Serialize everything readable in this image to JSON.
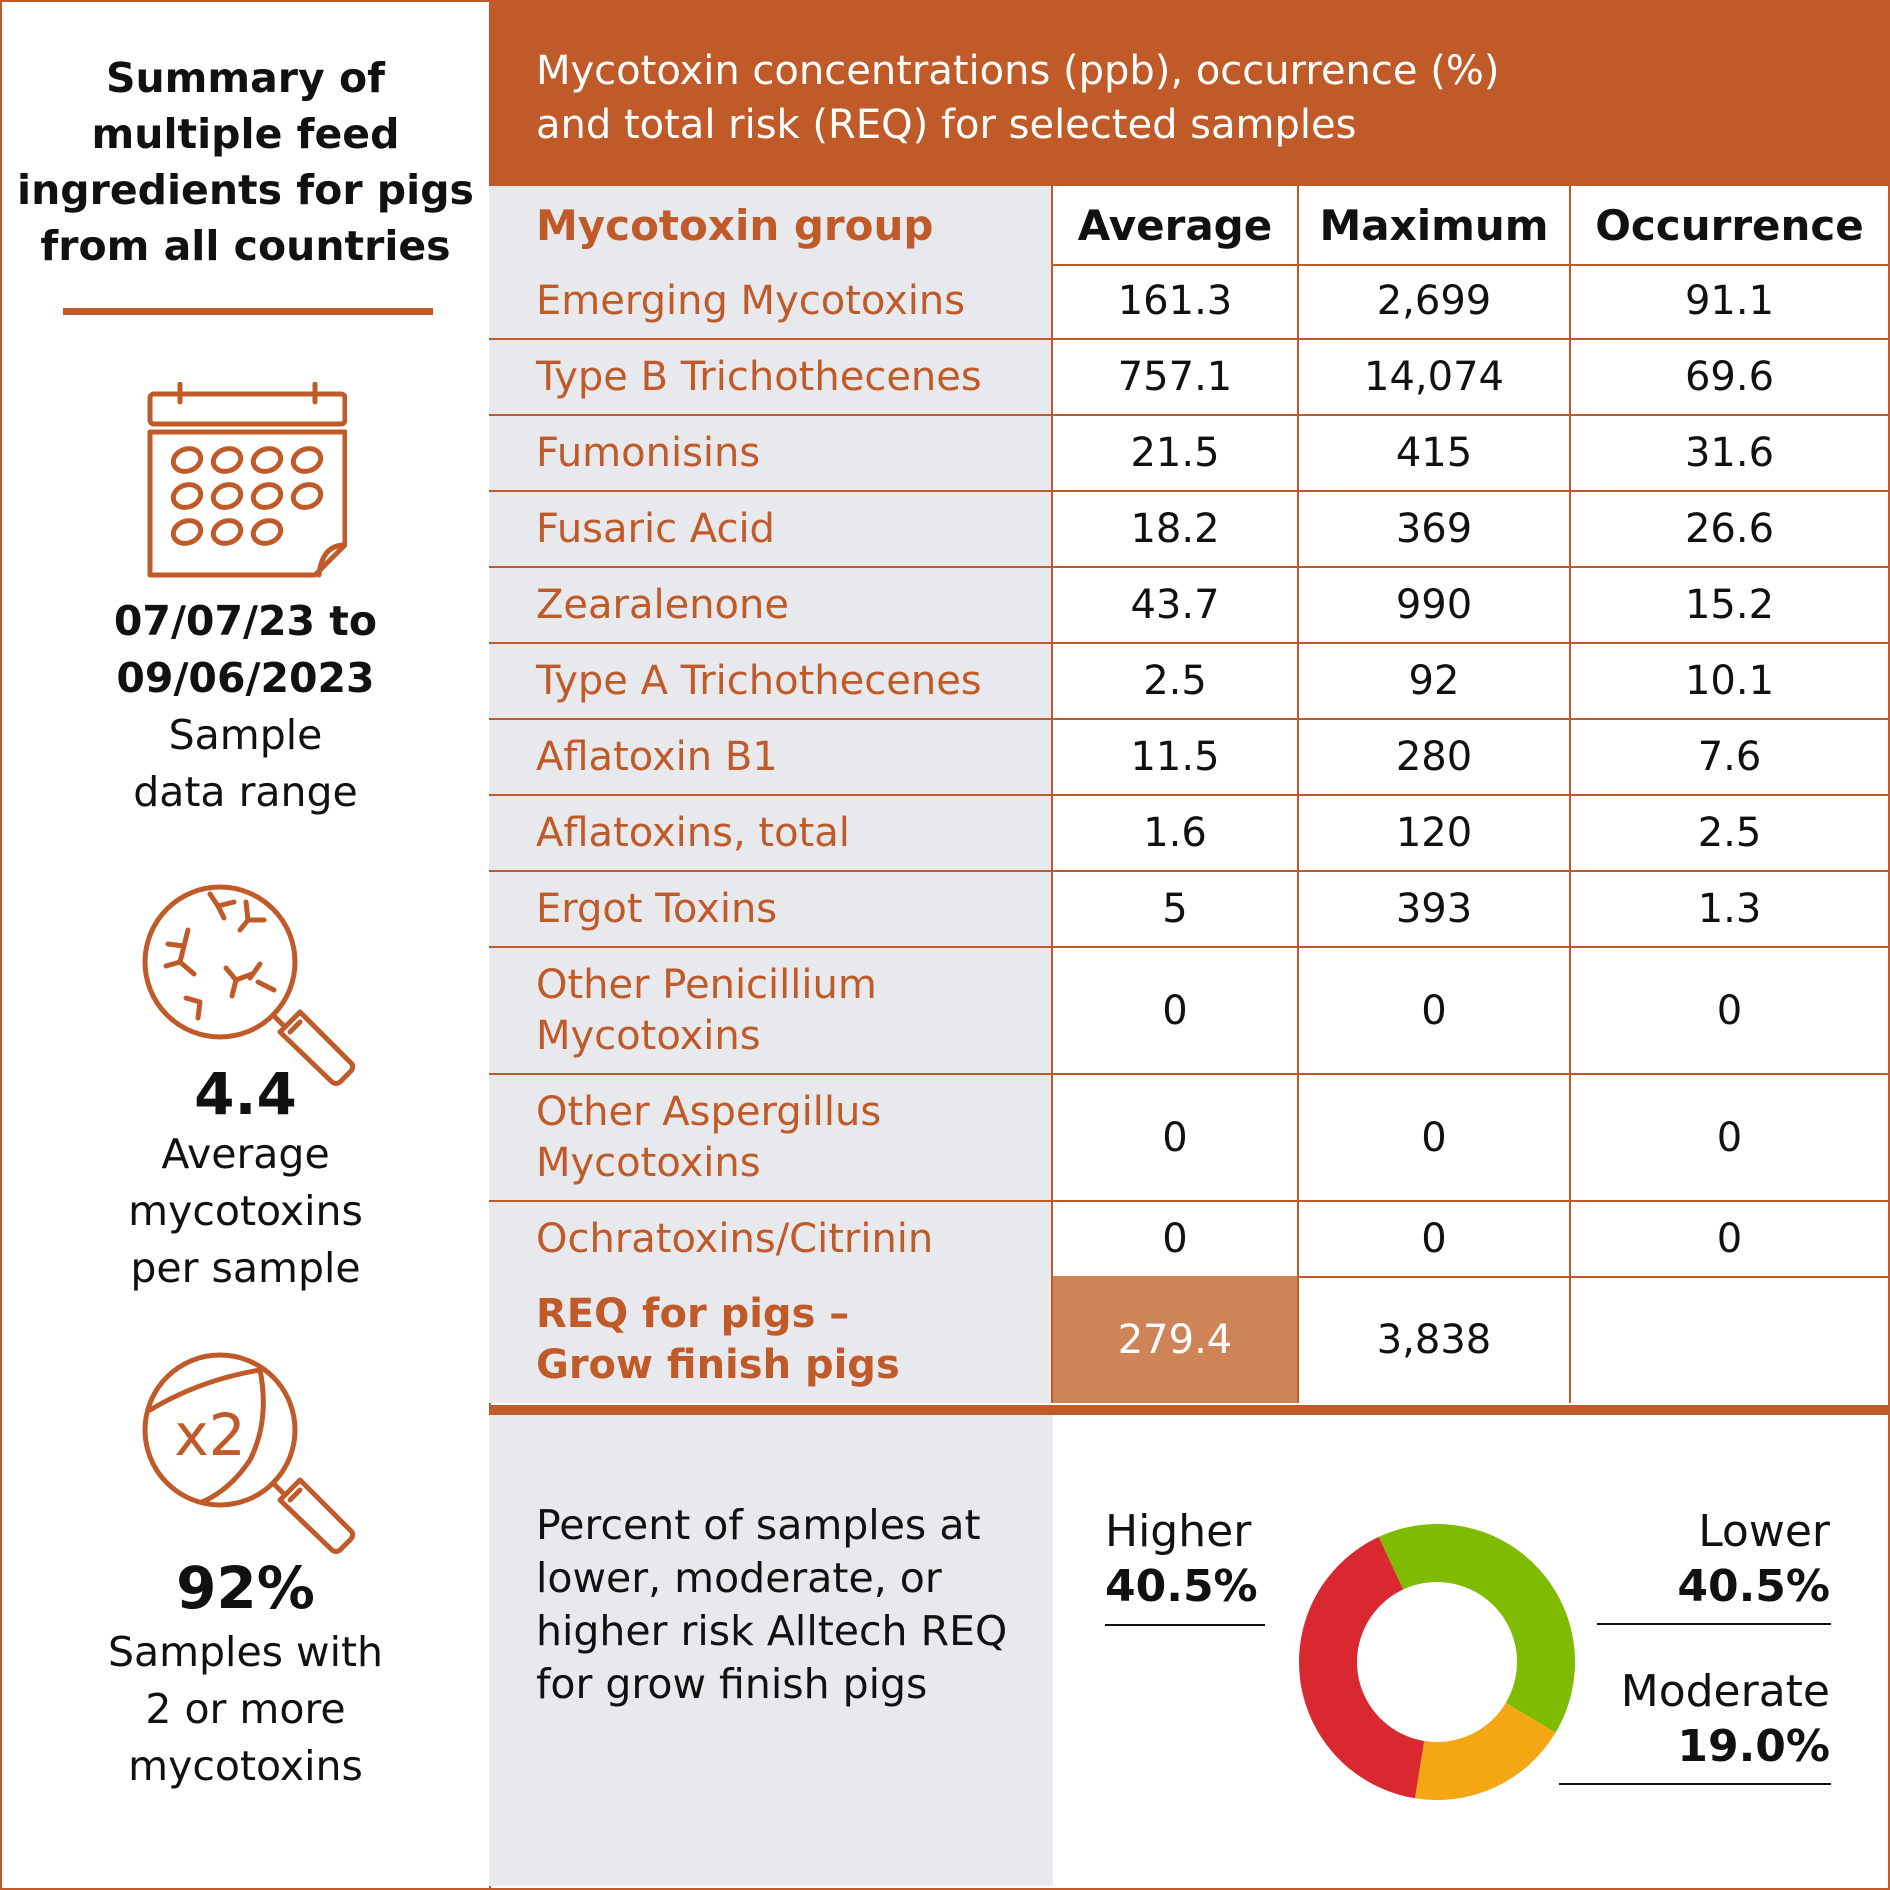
{
  "sidebar": {
    "title": [
      "Summary of",
      "multiple feed",
      "ingredients for pigs",
      "from all countries"
    ],
    "date_range": [
      "07/07/23 to",
      "09/06/2023"
    ],
    "date_label": [
      "Sample",
      "data range"
    ],
    "avg_value": "4.4",
    "avg_label": [
      "Average",
      "mycotoxins",
      "per sample"
    ],
    "pct_value": "92%",
    "pct_label": [
      "Samples with",
      "2 or more",
      "mycotoxins"
    ],
    "x2_text": "x2",
    "icons": [
      "calendar-icon",
      "magnifier-mold-icon",
      "magnifier-x2-icon"
    ],
    "accent_color": "#c05a28"
  },
  "header": {
    "lines": [
      "Mycotoxin concentrations (ppb), occurrence (%)",
      "and total risk (REQ) for selected samples"
    ]
  },
  "table": {
    "columns": [
      "Mycotoxin group",
      "Average",
      "Maximum",
      "Occurrence"
    ],
    "rows": [
      {
        "group": [
          "Emerging Mycotoxins"
        ],
        "average": "161.3",
        "maximum": "2,699",
        "occurrence": "91.1"
      },
      {
        "group": [
          "Type B Trichothecenes"
        ],
        "average": "757.1",
        "maximum": "14,074",
        "occurrence": "69.6"
      },
      {
        "group": [
          "Fumonisins"
        ],
        "average": "21.5",
        "maximum": "415",
        "occurrence": "31.6"
      },
      {
        "group": [
          "Fusaric Acid"
        ],
        "average": "18.2",
        "maximum": "369",
        "occurrence": "26.6"
      },
      {
        "group": [
          "Zearalenone"
        ],
        "average": "43.7",
        "maximum": "990",
        "occurrence": "15.2"
      },
      {
        "group": [
          "Type A Trichothecenes"
        ],
        "average": "2.5",
        "maximum": "92",
        "occurrence": "10.1"
      },
      {
        "group": [
          "Aflatoxin B1"
        ],
        "average": "11.5",
        "maximum": "280",
        "occurrence": "7.6"
      },
      {
        "group": [
          "Aflatoxins, total"
        ],
        "average": "1.6",
        "maximum": "120",
        "occurrence": "2.5"
      },
      {
        "group": [
          "Ergot Toxins"
        ],
        "average": "5",
        "maximum": "393",
        "occurrence": "1.3"
      },
      {
        "group": [
          "Other Penicillium",
          "Mycotoxins"
        ],
        "average": "0",
        "maximum": "0",
        "occurrence": "0"
      },
      {
        "group": [
          "Other Aspergillus",
          "Mycotoxins"
        ],
        "average": "0",
        "maximum": "0",
        "occurrence": "0"
      },
      {
        "group": [
          "Ochratoxins/Citrinin"
        ],
        "average": "0",
        "maximum": "0",
        "occurrence": "0"
      }
    ],
    "req_row": {
      "group": [
        "REQ for pigs –",
        "Grow finish pigs"
      ],
      "average": "279.4",
      "maximum": "3,838",
      "occurrence": ""
    }
  },
  "bottom": {
    "text": [
      "Percent of samples at",
      "lower, moderate, or",
      "higher risk Alltech REQ",
      "for grow finish pigs"
    ]
  },
  "chart_data": {
    "type": "pie",
    "donut": true,
    "categories": [
      "Lower",
      "Moderate",
      "Higher"
    ],
    "values": [
      40.5,
      19.0,
      40.5
    ],
    "labels": [
      "40.5%",
      "19.0%",
      "40.5%"
    ],
    "colors": [
      "#7fbb00",
      "#f3a712",
      "#d9282f"
    ]
  }
}
